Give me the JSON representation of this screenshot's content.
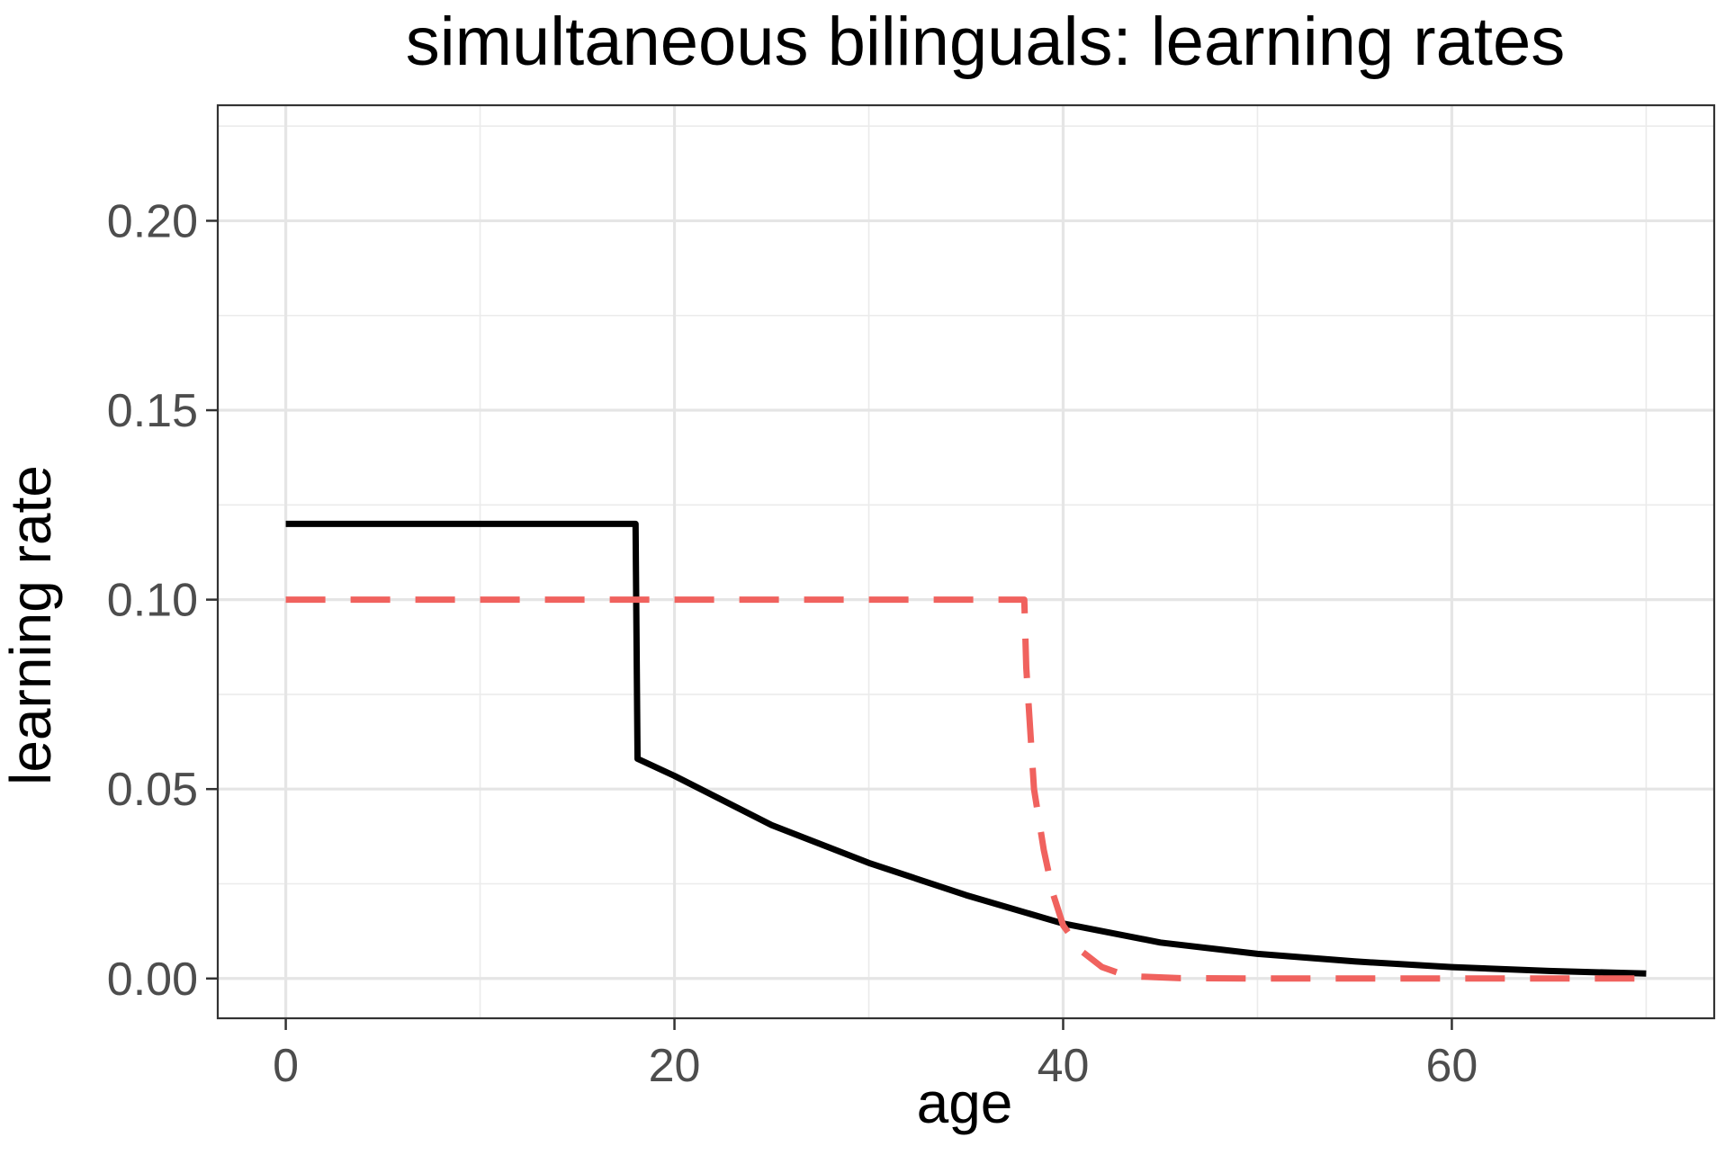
{
  "chart_data": {
    "type": "line",
    "title": "simultaneous bilinguals: learning rates",
    "xlabel": "age",
    "ylabel": "learning rate",
    "xlim": [
      -3.5,
      73.5
    ],
    "ylim": [
      -0.0105,
      0.2305
    ],
    "x_ticks": [
      0,
      20,
      40,
      60
    ],
    "x_tick_labels": [
      "0",
      "20",
      "40",
      "60"
    ],
    "y_ticks": [
      0.0,
      0.05,
      0.1,
      0.15,
      0.2
    ],
    "y_tick_labels": [
      "0.00",
      "0.05",
      "0.10",
      "0.15",
      "0.20"
    ],
    "grid": true,
    "legend": "none",
    "series": [
      {
        "color": "#000000",
        "style": "solid",
        "x": [
          0,
          18,
          18.1,
          20,
          25,
          30,
          35,
          40,
          45,
          50,
          55,
          60,
          65,
          70
        ],
        "y": [
          0.12,
          0.12,
          0.058,
          0.0535,
          0.0405,
          0.0305,
          0.022,
          0.0145,
          0.0095,
          0.0065,
          0.0045,
          0.003,
          0.002,
          0.0013
        ]
      },
      {
        "color": "#f0625e",
        "style": "dashed",
        "x": [
          0,
          38,
          38.1,
          38.5,
          39,
          39.5,
          40,
          41,
          42,
          43,
          44,
          46,
          50,
          60,
          70
        ],
        "y": [
          0.1,
          0.1,
          0.082,
          0.05,
          0.034,
          0.022,
          0.014,
          0.007,
          0.003,
          0.0012,
          0.0005,
          0.0001,
          0.0,
          0.0,
          0.0
        ]
      }
    ]
  }
}
